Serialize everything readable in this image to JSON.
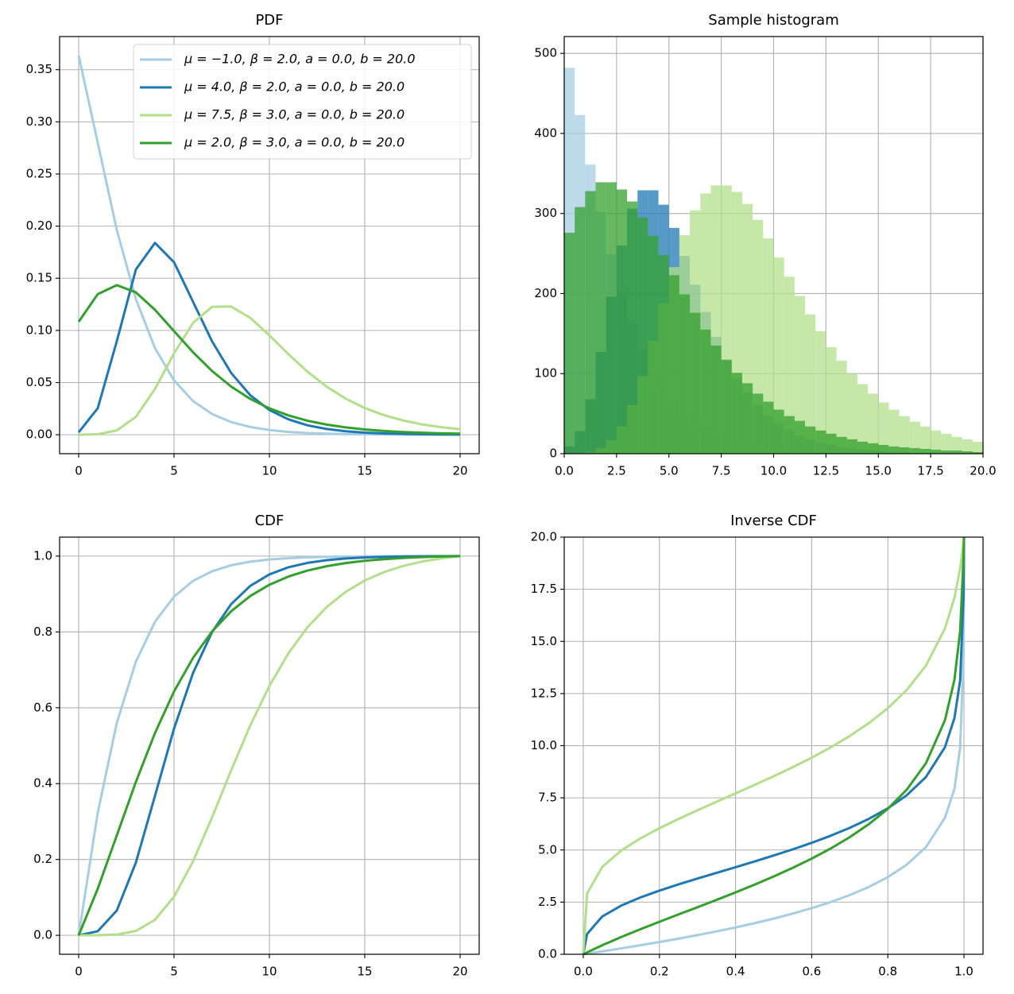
{
  "chart_data": [
    {
      "type": "line",
      "title": "PDF",
      "x": [
        0,
        1,
        2,
        3,
        4,
        5,
        6,
        7,
        8,
        9,
        10,
        11,
        12,
        13,
        14,
        15,
        16,
        17,
        18,
        19,
        20
      ],
      "series": [
        {
          "name": "μ = −1.0, β = 2.0, a = 0.0, b = 20.0",
          "color": "#a6cee3",
          "values": [
            0.3636,
            0.2799,
            0.1963,
            0.13,
            0.0831,
            0.0521,
            0.0322,
            0.0198,
            0.0121,
            0.0074,
            0.0045,
            0.0027,
            0.0016,
            0.001,
            0.0006,
            0.0004,
            0.0002,
            0.0001,
            0.0001,
            0.0,
            0.0
          ]
        },
        {
          "name": "μ = 4.0, β = 2.0, a = 0.0, b = 20.0",
          "color": "#1f78b4",
          "values": [
            0.0023,
            0.0254,
            0.0897,
            0.1585,
            0.1839,
            0.1654,
            0.1273,
            0.0893,
            0.0591,
            0.0378,
            0.0237,
            0.0147,
            0.009,
            0.0055,
            0.0033,
            0.002,
            0.0012,
            0.0008,
            0.0005,
            0.0003,
            0.0002
          ]
        },
        {
          "name": "μ = 7.5, β = 3.0, a = 0.0, b = 20.0",
          "color": "#b2df8a",
          "values": [
            0.0,
            0.0005,
            0.0041,
            0.0172,
            0.0438,
            0.078,
            0.1073,
            0.1227,
            0.1229,
            0.112,
            0.0953,
            0.0772,
            0.0604,
            0.0461,
            0.0346,
            0.0256,
            0.0188,
            0.0137,
            0.0099,
            0.0072,
            0.0052
          ]
        },
        {
          "name": "μ = 2.0, β = 3.0, a = 0.0, b = 20.0",
          "color": "#33a02c",
          "values": [
            0.1083,
            0.1348,
            0.1434,
            0.1365,
            0.1198,
            0.0993,
            0.079,
            0.061,
            0.0461,
            0.0343,
            0.0253,
            0.0185,
            0.0134,
            0.0097,
            0.007,
            0.005,
            0.0036,
            0.0026,
            0.0019,
            0.0013,
            0.001
          ]
        }
      ],
      "xlim": [
        -1,
        21
      ],
      "ylim": [
        -0.0182,
        0.3818
      ],
      "xticks": [
        0,
        5,
        10,
        15,
        20
      ],
      "yticks": [
        {
          "value": 0,
          "label": "0.00"
        },
        {
          "value": 0.05,
          "label": "0.05"
        },
        {
          "value": 0.1,
          "label": "0.10"
        },
        {
          "value": 0.15,
          "label": "0.15"
        },
        {
          "value": 0.2,
          "label": "0.20"
        },
        {
          "value": 0.25,
          "label": "0.25"
        },
        {
          "value": 0.3,
          "label": "0.30"
        },
        {
          "value": 0.35,
          "label": "0.35"
        }
      ],
      "grid": true,
      "legend": "upper right"
    },
    {
      "type": "histogram",
      "title": "Sample histogram",
      "bins": [
        0,
        0.5,
        1,
        1.5,
        2,
        2.5,
        3,
        3.5,
        4,
        4.5,
        5,
        5.5,
        6,
        6.5,
        7,
        7.5,
        8,
        8.5,
        9,
        9.5,
        10,
        10.5,
        11,
        11.5,
        12,
        12.5,
        13,
        13.5,
        14,
        14.5,
        15,
        15.5,
        16,
        16.5,
        17,
        17.5,
        18,
        18.5,
        19,
        19.5,
        20
      ],
      "series": [
        {
          "color": "#a6cee3",
          "values": [
            482,
            423,
            361,
            302,
            249,
            203,
            163,
            130,
            104,
            82,
            65,
            51,
            40,
            31,
            25,
            19,
            15,
            12,
            9,
            7,
            5,
            4,
            3,
            2,
            2,
            1,
            1,
            1,
            0,
            0,
            0,
            0,
            0,
            0,
            0,
            0,
            0,
            0,
            0,
            0
          ]
        },
        {
          "color": "#1f78b4",
          "values": [
            9,
            28,
            68,
            127,
            196,
            260,
            306,
            329,
            329,
            311,
            282,
            247,
            211,
            177,
            146,
            118,
            95,
            76,
            61,
            48,
            38,
            30,
            23,
            18,
            14,
            11,
            9,
            7,
            5,
            4,
            3,
            3,
            2,
            1,
            1,
            1,
            1,
            1,
            0,
            0
          ]
        },
        {
          "color": "#b2df8a",
          "values": [
            0,
            1,
            2,
            7,
            17,
            34,
            61,
            97,
            141,
            188,
            233,
            273,
            304,
            325,
            335,
            335,
            327,
            312,
            292,
            269,
            245,
            221,
            197,
            174,
            153,
            133,
            116,
            100,
            87,
            75,
            64,
            55,
            47,
            40,
            34,
            29,
            25,
            21,
            18,
            15
          ]
        },
        {
          "color": "#33a02c",
          "values": [
            276,
            308,
            328,
            339,
            339,
            330,
            315,
            295,
            272,
            248,
            223,
            199,
            176,
            155,
            135,
            117,
            101,
            88,
            75,
            65,
            55,
            47,
            41,
            34,
            29,
            25,
            21,
            18,
            15,
            13,
            11,
            9,
            8,
            7,
            6,
            5,
            4,
            4,
            3,
            2
          ]
        }
      ],
      "xlim": [
        0,
        20
      ],
      "ylim": [
        0,
        521
      ],
      "xticks": [
        {
          "value": 0,
          "label": "0.0"
        },
        2.5,
        {
          "value": 5,
          "label": "5.0"
        },
        7.5,
        {
          "value": 10,
          "label": "10.0"
        },
        12.5,
        {
          "value": 15,
          "label": "15.0"
        },
        17.5,
        {
          "value": 20,
          "label": "20.0"
        }
      ],
      "yticks": [
        0,
        100,
        200,
        300,
        400,
        500
      ],
      "grid": true
    },
    {
      "type": "line",
      "title": "CDF",
      "x": [
        0,
        1,
        2,
        3,
        4,
        5,
        6,
        7,
        8,
        9,
        10,
        11,
        12,
        13,
        14,
        15,
        16,
        17,
        18,
        19,
        20
      ],
      "series": [
        {
          "color": "#a6cee3",
          "values": [
            0,
            0.3232,
            0.5602,
            0.7216,
            0.8267,
            0.8931,
            0.9347,
            0.96,
            0.9758,
            0.9853,
            0.991,
            0.9945,
            0.9967,
            0.998,
            0.9988,
            0.9993,
            0.9996,
            0.9997,
            0.9998,
            0.9999,
            1.0
          ]
        },
        {
          "color": "#1f78b4",
          "values": [
            0,
            0.0107,
            0.0655,
            0.1919,
            0.3676,
            0.5451,
            0.6922,
            0.8001,
            0.8736,
            0.9215,
            0.9517,
            0.9706,
            0.9821,
            0.9893,
            0.9937,
            0.9963,
            0.9979,
            0.9989,
            0.9995,
            0.9998,
            1.0
          ]
        },
        {
          "color": "#b2df8a",
          "values": [
            0,
            0.0002,
            0.0019,
            0.0115,
            0.0409,
            0.1018,
            0.1953,
            0.3117,
            0.4356,
            0.5537,
            0.6577,
            0.7439,
            0.8125,
            0.8655,
            0.9056,
            0.9356,
            0.9576,
            0.9738,
            0.9855,
            0.9939,
            1.0
          ]
        },
        {
          "color": "#33a02c",
          "values": [
            0,
            0.1229,
            0.2635,
            0.4046,
            0.5333,
            0.6429,
            0.7319,
            0.8016,
            0.8548,
            0.8948,
            0.9244,
            0.9461,
            0.9619,
            0.9733,
            0.9816,
            0.9877,
            0.9919,
            0.9951,
            0.9973,
            0.9989,
            1.0
          ]
        }
      ],
      "xlim": [
        -1,
        21
      ],
      "ylim": [
        -0.05,
        1.05
      ],
      "xticks": [
        0,
        5,
        10,
        15,
        20
      ],
      "yticks": [
        {
          "value": 0,
          "label": "0.0"
        },
        0.2,
        0.4,
        0.6,
        0.8,
        {
          "value": 1,
          "label": "1.0"
        }
      ],
      "grid": true
    },
    {
      "type": "line",
      "title": "Inverse CDF",
      "x": [
        0,
        0.01,
        0.05,
        0.1,
        0.15,
        0.2,
        0.25,
        0.3,
        0.35,
        0.4,
        0.45,
        0.5,
        0.55,
        0.6,
        0.65,
        0.7,
        0.75,
        0.8,
        0.85,
        0.9,
        0.95,
        0.975,
        0.99,
        0.999,
        1
      ],
      "series": [
        {
          "color": "#a6cee3",
          "values": [
            0,
            0.027,
            0.139,
            0.283,
            0.432,
            0.587,
            0.748,
            0.918,
            1.097,
            1.287,
            1.491,
            1.71,
            1.948,
            2.211,
            2.504,
            2.838,
            3.229,
            3.699,
            4.301,
            5.132,
            6.544,
            7.936,
            9.917,
            14.41,
            20
          ]
        },
        {
          "color": "#1f78b4",
          "values": [
            0,
            0.971,
            1.813,
            2.336,
            2.723,
            3.051,
            3.349,
            3.631,
            3.904,
            4.176,
            4.451,
            4.734,
            5.029,
            5.344,
            5.684,
            6.061,
            6.491,
            6.998,
            7.63,
            8.496,
            9.928,
            11.327,
            13.136,
            17.23,
            20
          ]
        },
        {
          "color": "#b2df8a",
          "values": [
            0,
            2.908,
            4.193,
            4.978,
            5.555,
            6.044,
            6.487,
            6.905,
            7.31,
            7.712,
            8.117,
            8.533,
            8.967,
            9.426,
            9.92,
            10.465,
            11.08,
            11.799,
            12.678,
            13.838,
            15.618,
            17.095,
            18.499,
            19.808,
            20
          ]
        },
        {
          "color": "#33a02c",
          "values": [
            0,
            0.091,
            0.434,
            0.828,
            1.199,
            1.556,
            1.908,
            2.255,
            2.607,
            2.967,
            3.339,
            3.728,
            4.142,
            4.586,
            5.072,
            5.615,
            6.237,
            6.973,
            7.896,
            9.155,
            11.218,
            13.17,
            15.5,
            19.08,
            20
          ]
        }
      ],
      "xlim": [
        -0.05,
        1.05
      ],
      "ylim": [
        0,
        20
      ],
      "xticks": [
        {
          "value": 0,
          "label": "0.0"
        },
        0.2,
        0.4,
        0.6,
        0.8,
        {
          "value": 1,
          "label": "1.0"
        }
      ],
      "yticks": [
        {
          "value": 0,
          "label": "0.0"
        },
        2.5,
        {
          "value": 5,
          "label": "5.0"
        },
        7.5,
        {
          "value": 10,
          "label": "10.0"
        },
        12.5,
        {
          "value": 15,
          "label": "15.0"
        },
        17.5,
        {
          "value": 20,
          "label": "20.0"
        }
      ],
      "grid": true
    }
  ]
}
